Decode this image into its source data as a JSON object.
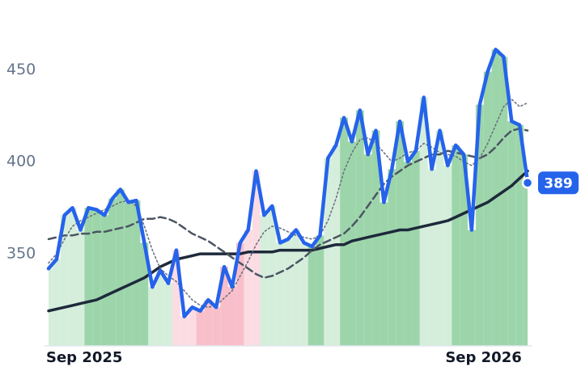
{
  "chart_data": {
    "type": "line",
    "categories": [
      "Sep 2025",
      null,
      null,
      null,
      null,
      null,
      null,
      null,
      null,
      null,
      null,
      null,
      null,
      null,
      null,
      null,
      null,
      null,
      null,
      null,
      null,
      null,
      null,
      null,
      null,
      null,
      null,
      null,
      null,
      null,
      null,
      null,
      null,
      null,
      null,
      null,
      null,
      null,
      null,
      null,
      null,
      null,
      null,
      null,
      null,
      null,
      null,
      null,
      null,
      null,
      "Sep 2026",
      null,
      null,
      null,
      null,
      null,
      null,
      null,
      null,
      null,
      null
    ],
    "ylim": [
      300,
      480
    ],
    "yticks": [
      350,
      400,
      450
    ],
    "series": [
      {
        "color": "#1e293b",
        "style": "solid",
        "values": [
          319,
          320,
          321,
          322,
          323,
          324,
          325,
          327,
          329,
          331,
          333,
          335,
          337,
          340,
          343,
          345,
          347,
          348,
          349,
          350,
          350,
          350,
          350,
          350,
          350,
          351,
          351,
          351,
          351,
          352,
          352,
          352,
          352,
          352,
          353,
          354,
          355,
          355,
          357,
          358,
          359,
          360,
          361,
          362,
          363,
          363,
          364,
          365,
          366,
          367,
          368,
          370,
          372,
          374,
          376,
          378,
          381,
          384,
          387,
          391,
          395
        ]
      },
      {
        "color": "#4b5563",
        "style": "dashed",
        "values": [
          358,
          359,
          360,
          360,
          361,
          361,
          362,
          362,
          363,
          364,
          365,
          367,
          369,
          369,
          370,
          369,
          367,
          364,
          361,
          359,
          357,
          354,
          351,
          348,
          345,
          342,
          339,
          337,
          338,
          340,
          342,
          345,
          348,
          352,
          355,
          357,
          359,
          361,
          365,
          370,
          376,
          382,
          388,
          392,
          395,
          398,
          400,
          402,
          404,
          404,
          406,
          405,
          404,
          403,
          402,
          404,
          408,
          413,
          417,
          418,
          417
        ]
      },
      {
        "color": "#6b7280",
        "style": "dotted",
        "values": [
          345,
          350,
          358,
          365,
          368,
          370,
          372,
          374,
          376,
          378,
          379,
          376,
          365,
          352,
          342,
          338,
          335,
          330,
          325,
          322,
          321,
          322,
          326,
          330,
          338,
          346,
          355,
          362,
          365,
          364,
          362,
          360,
          359,
          358,
          360,
          368,
          380,
          395,
          405,
          412,
          413,
          410,
          405,
          400,
          402,
          405,
          406,
          410,
          408,
          405,
          404,
          403,
          400,
          398,
          402,
          410,
          420,
          430,
          434,
          430,
          432
        ]
      },
      {
        "color": "#2563eb",
        "style": "price",
        "values": [
          342,
          347,
          371,
          375,
          363,
          375,
          374,
          371,
          380,
          385,
          378,
          379,
          356,
          332,
          341,
          334,
          352,
          316,
          321,
          319,
          325,
          321,
          343,
          332,
          356,
          363,
          395,
          371,
          376,
          356,
          358,
          363,
          356,
          354,
          360,
          402,
          409,
          424,
          411,
          428,
          404,
          417,
          378,
          396,
          422,
          400,
          406,
          435,
          396,
          417,
          398,
          409,
          404,
          363,
          431,
          449,
          461,
          457,
          422,
          420,
          389
        ]
      }
    ],
    "shading": [
      {
        "start": 0,
        "end": 4,
        "color": "#d5eedb"
      },
      {
        "start": 5,
        "end": 12,
        "color": "#9dd5aa"
      },
      {
        "start": 13,
        "end": 15,
        "color": "#d5eedb"
      },
      {
        "start": 16,
        "end": 18,
        "color": "#fcdce3"
      },
      {
        "start": 19,
        "end": 24,
        "color": "#f8bfca"
      },
      {
        "start": 25,
        "end": 26,
        "color": "#fcdce3"
      },
      {
        "start": 27,
        "end": 32,
        "color": "#d5eedb"
      },
      {
        "start": 33,
        "end": 34,
        "color": "#9dd5aa"
      },
      {
        "start": 35,
        "end": 36,
        "color": "#d5eedb"
      },
      {
        "start": 37,
        "end": 46,
        "color": "#9dd5aa"
      },
      {
        "start": 47,
        "end": 50,
        "color": "#d5eedb"
      },
      {
        "start": 51,
        "end": 60,
        "color": "#9dd5aa"
      }
    ]
  }
}
